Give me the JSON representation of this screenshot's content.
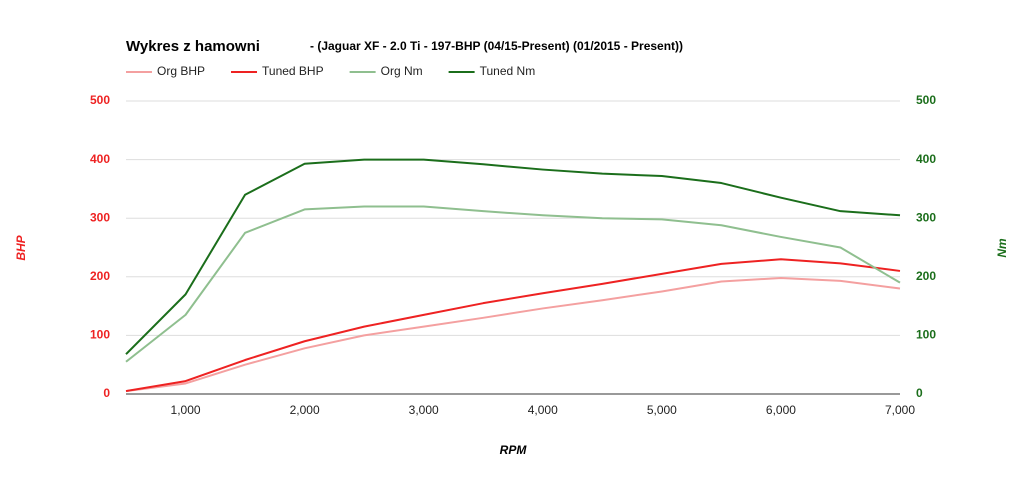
{
  "chart_data": {
    "type": "line",
    "title": "Wykres z hamowni",
    "subtitle": "- (Jaguar XF - 2.0 Ti - 197-BHP (04/15-Present) (01/2015 - Present))",
    "x_label": "RPM",
    "y_label": "BHP",
    "y2_label": "Nm",
    "x": [
      500,
      1000,
      1500,
      2000,
      2500,
      3000,
      3500,
      4000,
      4500,
      5000,
      5500,
      6000,
      6500,
      7000
    ],
    "series": [
      {
        "name": "Org BHP",
        "color": "#f4a0a0",
        "values": [
          5,
          18,
          50,
          78,
          100,
          115,
          130,
          146,
          160,
          175,
          192,
          198,
          193,
          180
        ]
      },
      {
        "name": "Tuned BHP",
        "color": "#ee2222",
        "values": [
          5,
          22,
          58,
          90,
          115,
          135,
          155,
          172,
          188,
          205,
          222,
          230,
          223,
          210
        ]
      },
      {
        "name": "Org Nm",
        "color": "#8fbf8f",
        "axis": "y2",
        "values": [
          55,
          135,
          275,
          315,
          320,
          320,
          312,
          305,
          300,
          298,
          288,
          268,
          250,
          190
        ]
      },
      {
        "name": "Tuned Nm",
        "color": "#1b6e1b",
        "axis": "y2",
        "values": [
          68,
          170,
          340,
          393,
          400,
          400,
          392,
          383,
          376,
          372,
          360,
          335,
          312,
          305
        ]
      }
    ],
    "xlim": [
      500,
      7000
    ],
    "xticks": [
      {
        "value": 1000,
        "label": "1,000"
      },
      {
        "value": 2000,
        "label": "2,000"
      },
      {
        "value": 3000,
        "label": "3,000"
      },
      {
        "value": 4000,
        "label": "4,000"
      },
      {
        "value": 5000,
        "label": "5,000"
      },
      {
        "value": 6000,
        "label": "6,000"
      },
      {
        "value": 7000,
        "label": "7,000"
      }
    ],
    "ylim": [
      0,
      500
    ],
    "yticks": [
      0,
      100,
      200,
      300,
      400,
      500
    ],
    "y2lim": [
      0,
      500
    ],
    "y2ticks": [
      0,
      100,
      200,
      300,
      400,
      500
    ],
    "y_color": "#ee2222",
    "y2_color": "#1b6e1b",
    "grid": true,
    "legend": "top"
  }
}
